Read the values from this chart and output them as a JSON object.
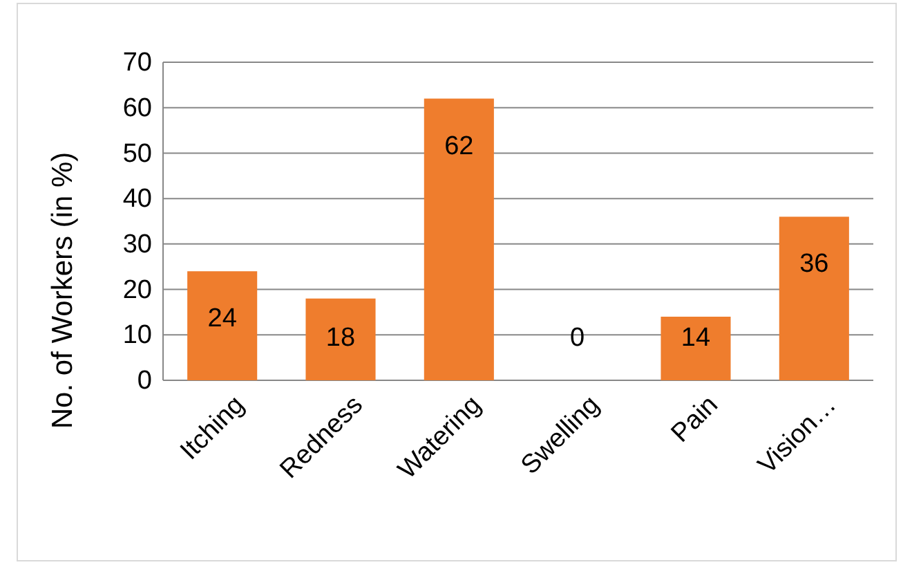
{
  "chart_data": {
    "type": "bar",
    "ylabel": "No. of Workers (in %)",
    "categories": [
      "Itching",
      "Redness",
      "Watering",
      "Swelling",
      "Pain",
      "Vision…"
    ],
    "values": [
      24,
      18,
      62,
      0,
      14,
      36
    ],
    "color": "#ef7d2d",
    "ylim": [
      0,
      70
    ],
    "yticks": [
      0,
      10,
      20,
      30,
      40,
      50,
      60,
      70
    ],
    "grid": "y",
    "data_labels": true
  }
}
